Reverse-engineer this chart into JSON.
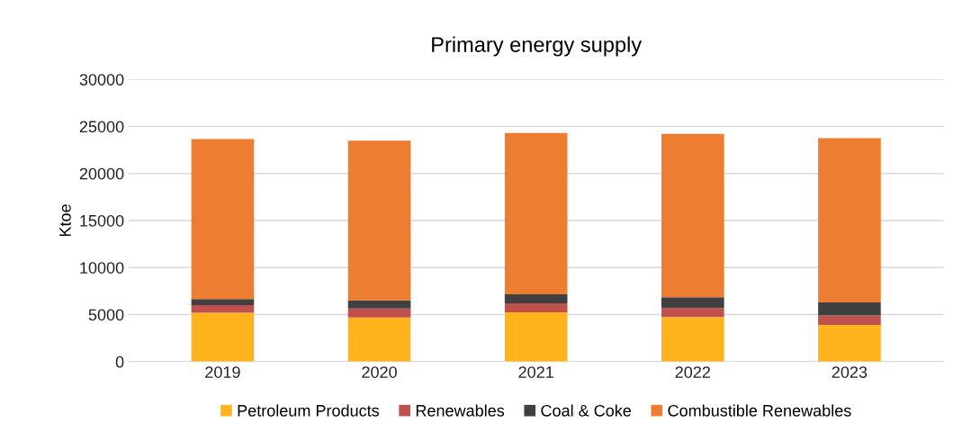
{
  "chart_data": {
    "type": "bar",
    "title": "Primary energy supply",
    "ylabel": "Ktoe",
    "categories": [
      "2019",
      "2020",
      "2021",
      "2022",
      "2023"
    ],
    "stacked": true,
    "series": [
      {
        "name": "Petroleum Products",
        "color": "#ffb41d",
        "values": [
          5200,
          4700,
          5250,
          4750,
          3900
        ]
      },
      {
        "name": "Renewables",
        "color": "#c0504d",
        "values": [
          800,
          950,
          950,
          950,
          1000
        ]
      },
      {
        "name": "Coal & Coke",
        "color": "#404040",
        "values": [
          650,
          850,
          950,
          1150,
          1400
        ]
      },
      {
        "name": "Combustible Renewables",
        "color": "#ed7d31",
        "values": [
          17000,
          17000,
          17150,
          17350,
          17450
        ]
      }
    ],
    "ylim": [
      0,
      30000
    ],
    "yticks": [
      0,
      5000,
      10000,
      15000,
      20000,
      25000,
      30000
    ],
    "grid": "y",
    "legend": "bottom"
  }
}
